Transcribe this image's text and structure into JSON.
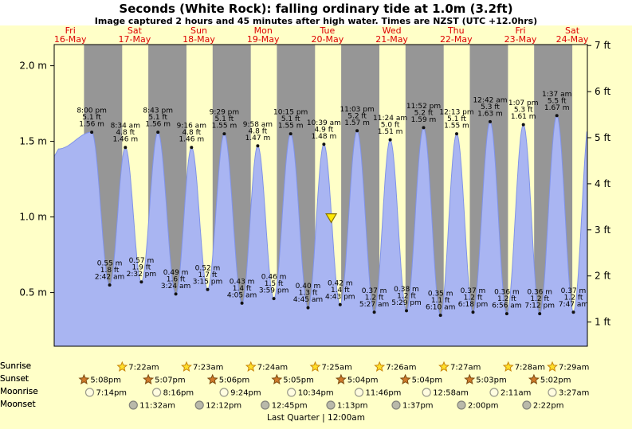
{
  "header": {
    "title": "Seconds (White Rock): falling  ordinary tide at 1.0m (3.2ft)",
    "subtitle": "Image captured 2 hours and 45 minutes after high water. Times are NZST (UTC +12.0hrs)"
  },
  "chart_data": {
    "type": "area",
    "title": "Seconds (White Rock): falling ordinary tide at 1.0m (3.2ft)",
    "subtitle": "Image captured 2 hours and 45 minutes after high water. Times are NZST (UTC +12.0hrs)",
    "days": [
      {
        "day": "Fri",
        "date": "16-May"
      },
      {
        "day": "Sat",
        "date": "17-May"
      },
      {
        "day": "Sun",
        "date": "18-May"
      },
      {
        "day": "Mon",
        "date": "19-May"
      },
      {
        "day": "Tue",
        "date": "20-May"
      },
      {
        "day": "Wed",
        "date": "21-May"
      },
      {
        "day": "Thu",
        "date": "22-May"
      },
      {
        "day": "Fri",
        "date": "23-May"
      },
      {
        "day": "Sat",
        "date": "24-May"
      }
    ],
    "y_axis_left": {
      "unit": "m",
      "ticks": [
        {
          "label": "2.0 m",
          "value": 2.0
        },
        {
          "label": "1.5 m",
          "value": 1.5
        },
        {
          "label": "1.0 m",
          "value": 1.0
        },
        {
          "label": "0.5 m",
          "value": 0.5
        }
      ]
    },
    "y_axis_right": {
      "unit": "ft",
      "ticks": [
        {
          "label": "7 ft",
          "value": 7
        },
        {
          "label": "6 ft",
          "value": 6
        },
        {
          "label": "5 ft",
          "value": 5
        },
        {
          "label": "4 ft",
          "value": 4
        },
        {
          "label": "3 ft",
          "value": 3
        },
        {
          "label": "2 ft",
          "value": 2
        },
        {
          "label": "1 ft",
          "value": 1
        }
      ]
    },
    "tides": [
      {
        "kind": "high",
        "day": 0,
        "time": "8:00 pm",
        "height_ft": 5.1,
        "height_m": 1.56
      },
      {
        "kind": "low",
        "day": 1,
        "time": "2:42 am",
        "height_ft": 1.8,
        "height_m": 0.55
      },
      {
        "kind": "high",
        "day": 1,
        "time": "8:34 am",
        "height_ft": 4.8,
        "height_m": 1.46
      },
      {
        "kind": "low",
        "day": 1,
        "time": "2:32 pm",
        "height_ft": 1.9,
        "height_m": 0.57
      },
      {
        "kind": "high",
        "day": 1,
        "time": "8:43 pm",
        "height_ft": 5.1,
        "height_m": 1.56
      },
      {
        "kind": "low",
        "day": 2,
        "time": "3:24 am",
        "height_ft": 1.6,
        "height_m": 0.49
      },
      {
        "kind": "high",
        "day": 2,
        "time": "9:16 am",
        "height_ft": 4.8,
        "height_m": 1.46
      },
      {
        "kind": "low",
        "day": 2,
        "time": "3:15 pm",
        "height_ft": 1.7,
        "height_m": 0.52
      },
      {
        "kind": "high",
        "day": 2,
        "time": "9:29 pm",
        "height_ft": 5.1,
        "height_m": 1.55
      },
      {
        "kind": "low",
        "day": 3,
        "time": "4:05 am",
        "height_ft": 1.4,
        "height_m": 0.43
      },
      {
        "kind": "high",
        "day": 3,
        "time": "9:58 am",
        "height_ft": 4.8,
        "height_m": 1.47
      },
      {
        "kind": "low",
        "day": 3,
        "time": "3:59 pm",
        "height_ft": 1.5,
        "height_m": 0.46
      },
      {
        "kind": "high",
        "day": 3,
        "time": "10:15 pm",
        "height_ft": 5.1,
        "height_m": 1.55
      },
      {
        "kind": "low",
        "day": 4,
        "time": "4:45 am",
        "height_ft": 1.3,
        "height_m": 0.4
      },
      {
        "kind": "high",
        "day": 4,
        "time": "10:39 am",
        "height_ft": 4.9,
        "height_m": 1.48
      },
      {
        "kind": "low",
        "day": 4,
        "time": "4:43 pm",
        "height_ft": 1.4,
        "height_m": 0.42
      },
      {
        "kind": "high",
        "day": 4,
        "time": "11:03 pm",
        "height_ft": 5.2,
        "height_m": 1.57
      },
      {
        "kind": "low",
        "day": 5,
        "time": "5:27 am",
        "height_ft": 1.2,
        "height_m": 0.37
      },
      {
        "kind": "high",
        "day": 5,
        "time": "11:24 am",
        "height_ft": 5.0,
        "height_m": 1.51
      },
      {
        "kind": "low",
        "day": 5,
        "time": "5:29 pm",
        "height_ft": 1.2,
        "height_m": 0.38
      },
      {
        "kind": "high",
        "day": 5,
        "time": "11:52 pm",
        "height_ft": 5.2,
        "height_m": 1.59
      },
      {
        "kind": "low",
        "day": 6,
        "time": "6:10 am",
        "height_ft": 1.1,
        "height_m": 0.35
      },
      {
        "kind": "high",
        "day": 6,
        "time": "12:13 pm",
        "height_ft": 5.1,
        "height_m": 1.55
      },
      {
        "kind": "low",
        "day": 6,
        "time": "6:18 pm",
        "height_ft": 1.2,
        "height_m": 0.37
      },
      {
        "kind": "high",
        "day": 7,
        "time": "12:42 am",
        "height_ft": 5.3,
        "height_m": 1.63
      },
      {
        "kind": "low",
        "day": 7,
        "time": "6:56 am",
        "height_ft": 1.2,
        "height_m": 0.36
      },
      {
        "kind": "high",
        "day": 7,
        "time": "1:07 pm",
        "height_ft": 5.3,
        "height_m": 1.61
      },
      {
        "kind": "low",
        "day": 7,
        "time": "7:12 pm",
        "height_ft": 1.2,
        "height_m": 0.36
      },
      {
        "kind": "high",
        "day": 8,
        "time": "1:37 am",
        "height_ft": 5.5,
        "height_m": 1.67
      },
      {
        "kind": "low",
        "day": 8,
        "time": "7:47 am",
        "height_ft": 1.2,
        "height_m": 0.37
      }
    ],
    "marker": {
      "name": "current-tide-level",
      "day": 4,
      "time": "1:24 pm",
      "level_m": 1.0
    },
    "colors": {
      "day_band": "#ffffc8",
      "night_band": "#969696",
      "tide_fill": "#a9b5f2",
      "tide_stroke": "#8093e8",
      "day_label": "#dd0000",
      "marker_fill": "#ffe800",
      "marker_stroke": "#8a7500"
    }
  },
  "astro": {
    "rows": [
      {
        "label": "Sunrise",
        "icon": "sunrise-star-icon",
        "entries": [
          {
            "time": "7:22am",
            "day": 1
          },
          {
            "time": "7:23am",
            "day": 2
          },
          {
            "time": "7:24am",
            "day": 3
          },
          {
            "time": "7:25am",
            "day": 4
          },
          {
            "time": "7:26am",
            "day": 5
          },
          {
            "time": "7:27am",
            "day": 6
          },
          {
            "time": "7:28am",
            "day": 7
          },
          {
            "time": "7:29am",
            "day": 8
          }
        ]
      },
      {
        "label": "Sunset",
        "icon": "sunset-star-icon",
        "entries": [
          {
            "time": "5:08pm",
            "day": 0
          },
          {
            "time": "5:07pm",
            "day": 1
          },
          {
            "time": "5:06pm",
            "day": 2
          },
          {
            "time": "5:05pm",
            "day": 3
          },
          {
            "time": "5:04pm",
            "day": 4
          },
          {
            "time": "5:04pm",
            "day": 5
          },
          {
            "time": "5:03pm",
            "day": 6
          },
          {
            "time": "5:02pm",
            "day": 7
          }
        ]
      },
      {
        "label": "Moonrise",
        "icon": "moonrise-icon",
        "entries": [
          {
            "time": "7:14pm",
            "day": 0
          },
          {
            "time": "8:16pm",
            "day": 1
          },
          {
            "time": "9:24pm",
            "day": 2
          },
          {
            "time": "10:34pm",
            "day": 3
          },
          {
            "time": "11:46pm",
            "day": 4
          },
          {
            "time": "12:58am",
            "day": 6
          },
          {
            "time": "2:11am",
            "day": 7
          },
          {
            "time": "3:27am",
            "day": 8
          }
        ]
      },
      {
        "label": "Moonset",
        "icon": "moonset-icon",
        "entries": [
          {
            "time": "11:32am",
            "day": 1
          },
          {
            "time": "12:12pm",
            "day": 2
          },
          {
            "time": "12:45pm",
            "day": 3
          },
          {
            "time": "1:13pm",
            "day": 4
          },
          {
            "time": "1:37pm",
            "day": 5
          },
          {
            "time": "2:00pm",
            "day": 6
          },
          {
            "time": "2:22pm",
            "day": 7
          }
        ]
      }
    ],
    "footer": "Last Quarter | 12:00am"
  }
}
